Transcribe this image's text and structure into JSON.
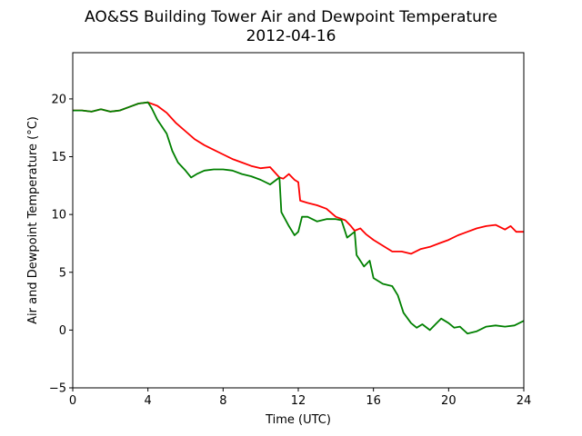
{
  "chart_data": {
    "type": "line",
    "title": "AO&SS Building Tower Air and Dewpoint Temperature",
    "subtitle": "2012-04-16",
    "xlabel": "Time (UTC)",
    "ylabel": "Air and Dewpoint Temperature (°C)",
    "xlim": [
      0,
      24
    ],
    "ylim": [
      -5,
      24
    ],
    "xticks": [
      0,
      4,
      8,
      12,
      16,
      20,
      24
    ],
    "yticks": [
      -5,
      0,
      5,
      10,
      15,
      20
    ],
    "grid": false,
    "legend": "none",
    "series": [
      {
        "color": "#ff0000",
        "points": [
          [
            0,
            19.0
          ],
          [
            0.5,
            19.0
          ],
          [
            1,
            18.9
          ],
          [
            1.5,
            19.1
          ],
          [
            2,
            18.9
          ],
          [
            2.5,
            19.0
          ],
          [
            3,
            19.3
          ],
          [
            3.5,
            19.6
          ],
          [
            4,
            19.7
          ],
          [
            4.5,
            19.4
          ],
          [
            5,
            18.8
          ],
          [
            5.5,
            17.9
          ],
          [
            6,
            17.2
          ],
          [
            6.5,
            16.5
          ],
          [
            7,
            16.0
          ],
          [
            7.5,
            15.6
          ],
          [
            8,
            15.2
          ],
          [
            8.5,
            14.8
          ],
          [
            9,
            14.5
          ],
          [
            9.5,
            14.2
          ],
          [
            10,
            14.0
          ],
          [
            10.5,
            14.1
          ],
          [
            11,
            13.2
          ],
          [
            11.2,
            13.1
          ],
          [
            11.5,
            13.5
          ],
          [
            11.8,
            13.0
          ],
          [
            12,
            12.8
          ],
          [
            12.1,
            11.2
          ],
          [
            12.5,
            11.0
          ],
          [
            13,
            10.8
          ],
          [
            13.5,
            10.5
          ],
          [
            14,
            9.8
          ],
          [
            14.5,
            9.5
          ],
          [
            14.8,
            9.0
          ],
          [
            15,
            8.6
          ],
          [
            15.3,
            8.8
          ],
          [
            15.6,
            8.3
          ],
          [
            16,
            7.8
          ],
          [
            16.5,
            7.3
          ],
          [
            17,
            6.8
          ],
          [
            17.5,
            6.8
          ],
          [
            18,
            6.6
          ],
          [
            18.5,
            7.0
          ],
          [
            19,
            7.2
          ],
          [
            19.5,
            7.5
          ],
          [
            20,
            7.8
          ],
          [
            20.5,
            8.2
          ],
          [
            21,
            8.5
          ],
          [
            21.5,
            8.8
          ],
          [
            22,
            9.0
          ],
          [
            22.5,
            9.1
          ],
          [
            23,
            8.7
          ],
          [
            23.3,
            9.0
          ],
          [
            23.6,
            8.5
          ],
          [
            24,
            8.5
          ]
        ]
      },
      {
        "color": "#008000",
        "points": [
          [
            0,
            19.0
          ],
          [
            0.5,
            19.0
          ],
          [
            1,
            18.9
          ],
          [
            1.5,
            19.1
          ],
          [
            2,
            18.9
          ],
          [
            2.5,
            19.0
          ],
          [
            3,
            19.3
          ],
          [
            3.5,
            19.6
          ],
          [
            4,
            19.7
          ],
          [
            4.2,
            19.2
          ],
          [
            4.5,
            18.2
          ],
          [
            5,
            17.0
          ],
          [
            5.3,
            15.5
          ],
          [
            5.6,
            14.5
          ],
          [
            6,
            13.8
          ],
          [
            6.3,
            13.2
          ],
          [
            6.6,
            13.5
          ],
          [
            7,
            13.8
          ],
          [
            7.5,
            13.9
          ],
          [
            8,
            13.9
          ],
          [
            8.5,
            13.8
          ],
          [
            9,
            13.5
          ],
          [
            9.5,
            13.3
          ],
          [
            10,
            13.0
          ],
          [
            10.5,
            12.6
          ],
          [
            11,
            13.2
          ],
          [
            11.1,
            10.2
          ],
          [
            11.5,
            9.0
          ],
          [
            11.8,
            8.2
          ],
          [
            12,
            8.5
          ],
          [
            12.2,
            9.8
          ],
          [
            12.5,
            9.8
          ],
          [
            13,
            9.4
          ],
          [
            13.5,
            9.6
          ],
          [
            14,
            9.6
          ],
          [
            14.3,
            9.5
          ],
          [
            14.6,
            8.0
          ],
          [
            15,
            8.5
          ],
          [
            15.1,
            6.5
          ],
          [
            15.5,
            5.5
          ],
          [
            15.8,
            6.0
          ],
          [
            16,
            4.5
          ],
          [
            16.5,
            4.0
          ],
          [
            17,
            3.8
          ],
          [
            17.3,
            3.0
          ],
          [
            17.6,
            1.5
          ],
          [
            18,
            0.6
          ],
          [
            18.3,
            0.2
          ],
          [
            18.6,
            0.5
          ],
          [
            19,
            0.0
          ],
          [
            19.3,
            0.5
          ],
          [
            19.6,
            1.0
          ],
          [
            20,
            0.6
          ],
          [
            20.3,
            0.2
          ],
          [
            20.6,
            0.3
          ],
          [
            21,
            -0.3
          ],
          [
            21.5,
            -0.1
          ],
          [
            22,
            0.3
          ],
          [
            22.5,
            0.4
          ],
          [
            23,
            0.3
          ],
          [
            23.5,
            0.4
          ],
          [
            24,
            0.8
          ]
        ]
      }
    ]
  }
}
